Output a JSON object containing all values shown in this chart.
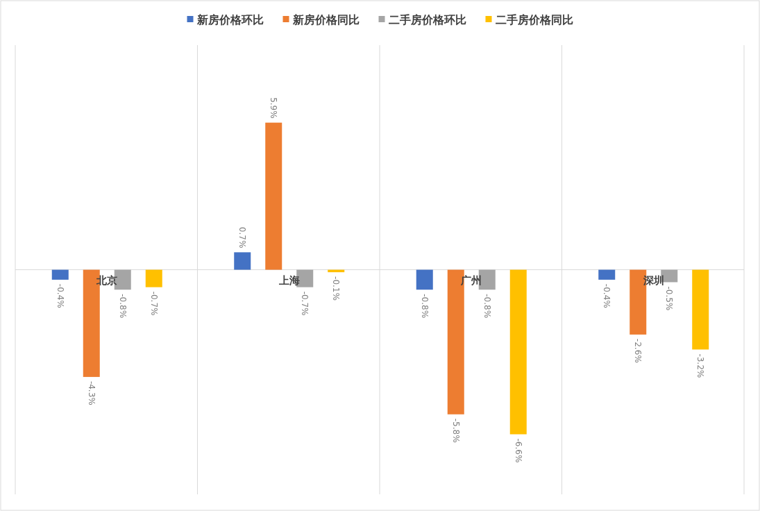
{
  "chart_data": {
    "type": "bar",
    "categories": [
      "北京",
      "上海",
      "广州",
      "深圳"
    ],
    "series": [
      {
        "name": "新房价格环比",
        "color": "#4472c4",
        "values": [
          -0.4,
          0.7,
          -0.8,
          -0.4
        ],
        "value_labels": [
          "-0.4%",
          "0.7%",
          "-0.8%",
          "-0.4%"
        ]
      },
      {
        "name": "新房价格同比",
        "color": "#ed7d31",
        "values": [
          -4.3,
          5.9,
          -5.8,
          -2.6
        ],
        "value_labels": [
          "-4.3%",
          "5.9%",
          "-5.8%",
          "-2.6%"
        ]
      },
      {
        "name": "二手房价格环比",
        "color": "#a5a5a5",
        "values": [
          -0.8,
          -0.7,
          -0.8,
          -0.5
        ],
        "value_labels": [
          "-0.8%",
          "-0.7%",
          "-0.8%",
          "-0.5%"
        ]
      },
      {
        "name": "二手房价格同比",
        "color": "#ffc000",
        "values": [
          -0.7,
          -0.1,
          -6.6,
          -3.2
        ],
        "value_labels": [
          "-0.7%",
          "-0.1%",
          "-6.6%",
          "-3.2%"
        ]
      }
    ],
    "legend": "top",
    "grid": "x"
  }
}
